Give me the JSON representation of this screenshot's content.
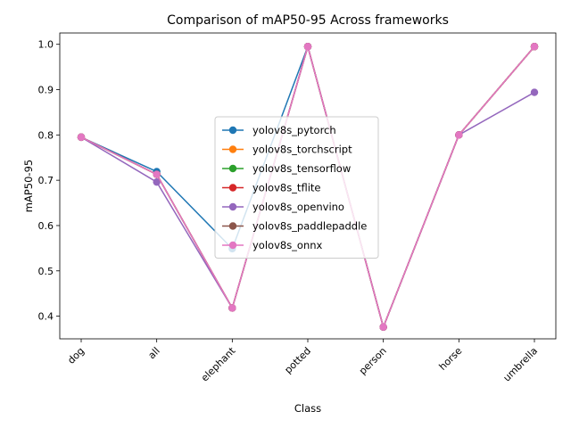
{
  "chart_data": {
    "type": "line",
    "title": "Comparison of mAP50-95 Across frameworks",
    "xlabel": "Class",
    "ylabel": "mAP50-95",
    "categories": [
      "dog",
      "all",
      "elephant",
      "potted",
      "person",
      "horse",
      "umbrella"
    ],
    "ylim": [
      0.35,
      1.025
    ],
    "yticks": [
      0.4,
      0.5,
      0.6,
      0.7,
      0.8,
      0.9,
      1.0
    ],
    "ytick_labels": [
      "0.4",
      "0.5",
      "0.6",
      "0.7",
      "0.8",
      "0.9",
      "1.0"
    ],
    "grid": false,
    "legend_position": "center",
    "series": [
      {
        "name": "yolov8s_pytorch",
        "color": "#1f77b4",
        "values": [
          0.795,
          0.719,
          0.549,
          0.995,
          0.376,
          0.8,
          0.995
        ]
      },
      {
        "name": "yolov8s_torchscript",
        "color": "#ff7f0e",
        "values": [
          0.795,
          0.713,
          0.418,
          0.995,
          0.376,
          0.8,
          0.995
        ]
      },
      {
        "name": "yolov8s_tensorflow",
        "color": "#2ca02c",
        "values": [
          0.795,
          0.713,
          0.418,
          0.995,
          0.376,
          0.8,
          0.995
        ]
      },
      {
        "name": "yolov8s_tflite",
        "color": "#d62728",
        "values": [
          0.795,
          0.713,
          0.418,
          0.995,
          0.376,
          0.8,
          0.995
        ]
      },
      {
        "name": "yolov8s_openvino",
        "color": "#9467bd",
        "values": [
          0.795,
          0.696,
          0.418,
          0.995,
          0.376,
          0.8,
          0.894
        ]
      },
      {
        "name": "yolov8s_paddlepaddle",
        "color": "#8c564b",
        "values": [
          0.795,
          0.713,
          0.418,
          0.995,
          0.376,
          0.8,
          0.995
        ]
      },
      {
        "name": "yolov8s_onnx",
        "color": "#e377c2",
        "values": [
          0.795,
          0.713,
          0.418,
          0.995,
          0.376,
          0.8,
          0.995
        ]
      }
    ]
  }
}
